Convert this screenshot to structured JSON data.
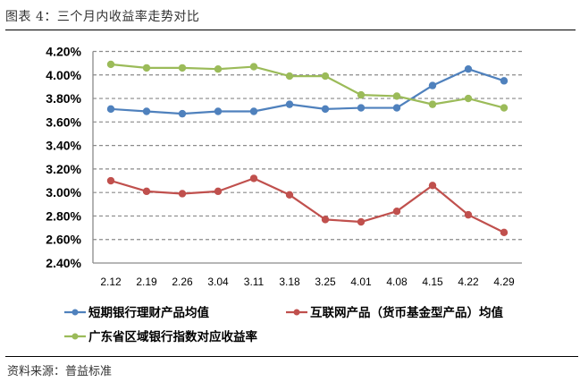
{
  "figure": {
    "title": "图表 4：三个月内收益率走势对比",
    "source": "资料来源：普益标准"
  },
  "chart_data": {
    "type": "line",
    "title": "三个月内收益率走势对比",
    "xlabel": "",
    "ylabel": "",
    "categories": [
      "2.12",
      "2.19",
      "2.26",
      "3.04",
      "3.11",
      "3.18",
      "3.25",
      "4.01",
      "4.08",
      "4.15",
      "4.22",
      "4.29"
    ],
    "ylim": [
      2.4,
      4.2
    ],
    "yticks": [
      2.4,
      2.6,
      2.8,
      3.0,
      3.2,
      3.4,
      3.6,
      3.8,
      4.0,
      4.2
    ],
    "ytick_labels": [
      "2.40%",
      "2.60%",
      "2.80%",
      "3.00%",
      "3.20%",
      "3.40%",
      "3.60%",
      "3.80%",
      "4.00%",
      "4.20%"
    ],
    "grid": true,
    "legend_position": "bottom",
    "series": [
      {
        "name": "短期银行理财产品均值",
        "color": "#4F81BD",
        "values": [
          3.71,
          3.69,
          3.67,
          3.69,
          3.69,
          3.75,
          3.71,
          3.72,
          3.72,
          3.91,
          4.05,
          3.95
        ]
      },
      {
        "name": "互联网产品（货币基金型产品）均值",
        "color": "#C0504D",
        "values": [
          3.1,
          3.01,
          2.99,
          3.01,
          3.12,
          2.98,
          2.77,
          2.75,
          2.84,
          3.06,
          2.81,
          2.66
        ]
      },
      {
        "name": "广东省区域银行指数对应收益率",
        "color": "#9BBB59",
        "values": [
          4.09,
          4.06,
          4.06,
          4.05,
          4.07,
          3.99,
          3.99,
          3.83,
          3.82,
          3.75,
          3.8,
          3.72
        ]
      }
    ]
  }
}
